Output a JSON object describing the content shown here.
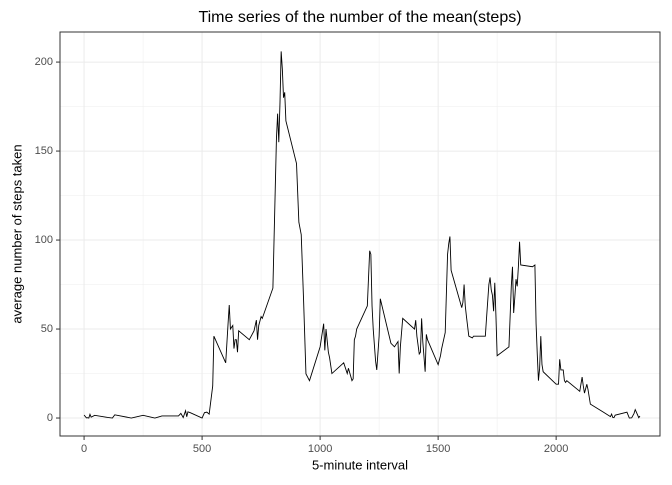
{
  "chart_data": {
    "type": "line",
    "title": "Time series of the number of the mean(steps)",
    "x_label": "5-minute interval",
    "y_label": "average number of steps taken",
    "x": [
      0,
      10,
      15,
      20,
      25,
      30,
      45,
      100,
      120,
      130,
      200,
      250,
      300,
      330,
      400,
      410,
      420,
      430,
      435,
      440,
      450,
      500,
      510,
      520,
      530,
      545,
      550,
      600,
      610,
      615,
      620,
      630,
      635,
      640,
      645,
      650,
      655,
      700,
      720,
      730,
      735,
      740,
      750,
      755,
      800,
      810,
      815,
      820,
      825,
      830,
      835,
      840,
      845,
      850,
      855,
      900,
      910,
      920,
      930,
      940,
      955,
      1000,
      1015,
      1020,
      1025,
      1035,
      1040,
      1050,
      1100,
      1115,
      1120,
      1135,
      1140,
      1145,
      1150,
      1155,
      1200,
      1210,
      1215,
      1220,
      1225,
      1235,
      1240,
      1250,
      1255,
      1300,
      1315,
      1330,
      1335,
      1340,
      1350,
      1400,
      1405,
      1410,
      1420,
      1425,
      1430,
      1435,
      1445,
      1450,
      1455,
      1500,
      1510,
      1515,
      1530,
      1540,
      1545,
      1550,
      1555,
      1600,
      1605,
      1610,
      1615,
      1620,
      1630,
      1645,
      1650,
      1700,
      1705,
      1715,
      1720,
      1725,
      1730,
      1735,
      1740,
      1745,
      1750,
      1800,
      1810,
      1815,
      1820,
      1825,
      1830,
      1835,
      1840,
      1845,
      1850,
      1900,
      1910,
      1915,
      1920,
      1925,
      1930,
      1935,
      1940,
      1945,
      2000,
      2005,
      2010,
      2015,
      2020,
      2030,
      2035,
      2040,
      2045,
      2100,
      2110,
      2115,
      2120,
      2130,
      2135,
      2145,
      2200,
      2230,
      2235,
      2240,
      2245,
      2250,
      2300,
      2310,
      2320,
      2330,
      2335,
      2340,
      2350,
      2355
    ],
    "series": [
      {
        "color": "#000000",
        "values": [
          1.7,
          0.1,
          0.2,
          0,
          2.1,
          0.5,
          1.5,
          0.3,
          0,
          1.8,
          0,
          1.5,
          0,
          1.2,
          1.2,
          2.6,
          0.3,
          4.1,
          0.7,
          3.5,
          3,
          0,
          3,
          3.3,
          2.2,
          18,
          46,
          31,
          53,
          63.5,
          50,
          52,
          39,
          44,
          44,
          37,
          49,
          44,
          49,
          55,
          44,
          52,
          57,
          56,
          73,
          129,
          157,
          171,
          155,
          177,
          206,
          196,
          180,
          183,
          167,
          143,
          110,
          103,
          66,
          24.8,
          21,
          40,
          53,
          38,
          50,
          37,
          34,
          25,
          31,
          25,
          28,
          21,
          22,
          44,
          46,
          50,
          63,
          94,
          92,
          63,
          50,
          32,
          27,
          46,
          67,
          42,
          40,
          43,
          25,
          40,
          56,
          50,
          55,
          46,
          36,
          37,
          56,
          43,
          26,
          47,
          44,
          30,
          35,
          39,
          48,
          92,
          98,
          102,
          83,
          62,
          65,
          75,
          63,
          57,
          46,
          45,
          46,
          46,
          56,
          75,
          79,
          72,
          69,
          60,
          76,
          57,
          35,
          40,
          74,
          85,
          59,
          68,
          78,
          74,
          85,
          99,
          86,
          85,
          86,
          53,
          36,
          21,
          28,
          46,
          30,
          26,
          19,
          19,
          19,
          33,
          27,
          27,
          21,
          20,
          21,
          15,
          23,
          18,
          14,
          19,
          16,
          7.8,
          3.3,
          0.8,
          2.2,
          0.3,
          0.2,
          1.6,
          3.3,
          0,
          0.1,
          2.6,
          4.7,
          3.3,
          0.2,
          1.1
        ]
      }
    ],
    "xlim": [
      -102,
      2440
    ],
    "ylim": [
      -10.1,
      216.9
    ],
    "xticks": [
      0,
      500,
      1000,
      1500,
      2000
    ],
    "yticks": [
      0,
      50,
      100,
      150,
      200
    ],
    "grid": true
  }
}
